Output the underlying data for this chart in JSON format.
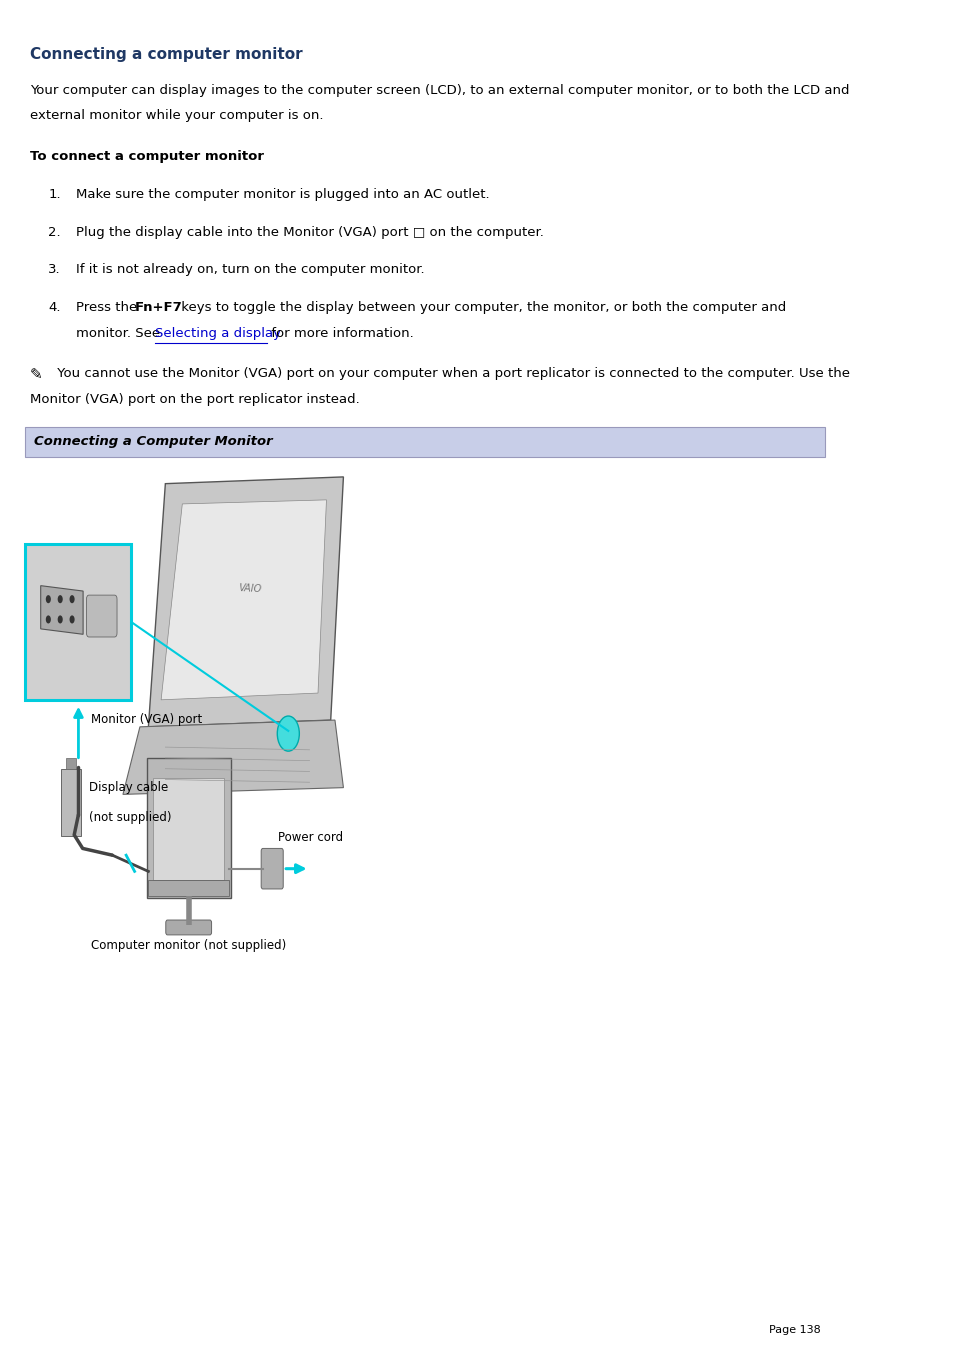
{
  "title": "Connecting a computer monitor",
  "title_color": "#1f3864",
  "background_color": "#ffffff",
  "body_text_line1": "Your computer can display images to the computer screen (LCD), to an external computer monitor, or to both the LCD and",
  "body_text_line2": "external monitor while your computer is on.",
  "subheading": "To connect a computer monitor",
  "step1": "Make sure the computer monitor is plugged into an AC outlet.",
  "step2a": "Plug the display cable into the Monitor (VGA) port ",
  "step2b": " on the computer.",
  "step3": "If it is not already on, turn on the computer monitor.",
  "step4_line1a": "Press the ",
  "step4_line1b": "Fn+F7",
  "step4_line1c": " keys to toggle the display between your computer, the monitor, or both the computer and",
  "step4_line2a": "monitor. See ",
  "step4_line2b": "Selecting a display",
  "step4_line2c": " for more information.",
  "note_line1": " You cannot use the Monitor (VGA) port on your computer when a port replicator is connected to the computer. Use the",
  "note_line2": "Monitor (VGA) port on the port replicator instead.",
  "section_banner_text": "Connecting a Computer Monitor",
  "section_banner_bg": "#c8cee8",
  "section_banner_border": "#9999bb",
  "link_color": "#0000cc",
  "page_number": "Page 138",
  "font_size_title": 11,
  "font_size_body": 9.5,
  "font_size_steps": 9.5,
  "font_size_banner": 9.5,
  "font_size_page": 8,
  "cyan_color": "#00ccdd",
  "diagram_label_color": "#000000"
}
